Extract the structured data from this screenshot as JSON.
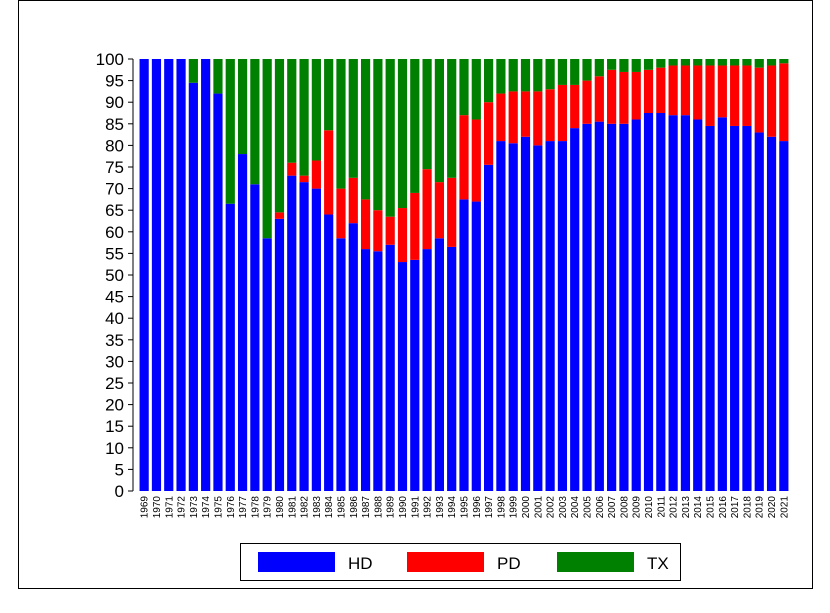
{
  "chart_data": {
    "type": "stacked-bar",
    "categories": [
      "1969",
      "1970",
      "1971",
      "1972",
      "1973",
      "1974",
      "1975",
      "1976",
      "1977",
      "1978",
      "1979",
      "1980",
      "1981",
      "1982",
      "1983",
      "1984",
      "1985",
      "1986",
      "1987",
      "1988",
      "1989",
      "1990",
      "1991",
      "1992",
      "1993",
      "1994",
      "1995",
      "1996",
      "1997",
      "1998",
      "1999",
      "2000",
      "2001",
      "2002",
      "2003",
      "2004",
      "2005",
      "2006",
      "2007",
      "2008",
      "2009",
      "2010",
      "2011",
      "2012",
      "2013",
      "2014",
      "2015",
      "2016",
      "2017",
      "2018",
      "2019",
      "2020",
      "2021"
    ],
    "series": [
      {
        "name": "HD",
        "color": "#0000ff",
        "values": [
          100,
          100,
          100,
          100,
          94.5,
          100,
          92,
          66.5,
          78,
          71,
          58.5,
          63,
          73,
          71.5,
          70,
          64,
          58.5,
          62,
          56,
          55.5,
          57,
          53,
          53.5,
          56,
          58.5,
          56.5,
          67.5,
          67,
          75.5,
          81,
          80.5,
          82,
          80,
          81,
          81,
          84,
          85,
          85.5,
          85,
          85,
          86,
          87.5,
          87.5,
          87,
          87,
          86,
          84.5,
          86.5,
          84.5,
          84.5,
          83,
          82,
          81
        ]
      },
      {
        "name": "PD",
        "color": "#ff0000",
        "values": [
          0,
          0,
          0,
          0,
          0,
          0,
          0,
          0,
          0,
          0,
          0,
          1.5,
          3,
          1.5,
          6.5,
          19.5,
          11.5,
          10.5,
          11.5,
          9.5,
          6.5,
          12.5,
          15.5,
          18.5,
          13,
          16,
          19.5,
          19,
          14.5,
          11,
          12,
          10.5,
          12.5,
          12,
          13,
          10,
          10,
          10.5,
          12.5,
          12,
          11,
          10,
          10.5,
          11.5,
          11.5,
          12.5,
          14,
          12,
          14,
          14,
          15,
          16.5,
          18
        ]
      },
      {
        "name": "TX",
        "color": "#008000",
        "values": [
          0,
          0,
          0,
          0,
          5.5,
          0,
          8,
          33.5,
          22,
          29,
          41.5,
          35.5,
          24,
          27,
          23.5,
          16.5,
          30,
          27.5,
          32.5,
          35,
          36.5,
          34.5,
          31,
          25.5,
          28.5,
          27.5,
          13,
          14,
          10,
          8,
          7.5,
          7.5,
          7.5,
          7,
          6,
          6,
          5,
          4,
          2.5,
          3,
          3,
          2.5,
          2,
          1.5,
          1.5,
          1.5,
          1.5,
          1.5,
          1.5,
          1.5,
          2,
          1.5,
          1
        ]
      }
    ],
    "ylim": [
      0,
      100
    ],
    "yticks": [
      0,
      5,
      10,
      15,
      20,
      25,
      30,
      35,
      40,
      45,
      50,
      55,
      60,
      65,
      70,
      75,
      80,
      85,
      90,
      95,
      100
    ]
  }
}
